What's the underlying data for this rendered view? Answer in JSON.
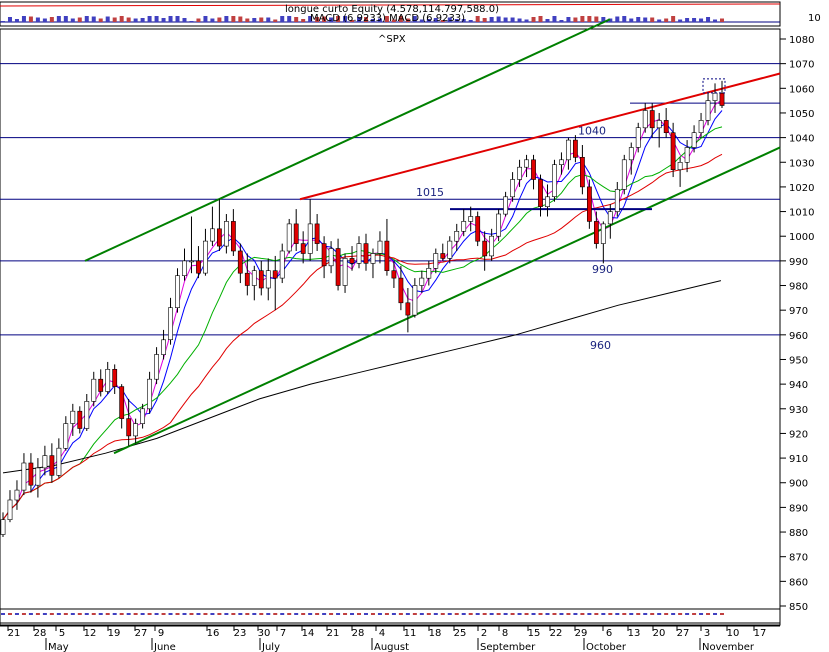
{
  "chart_data": {
    "type": "candlestick",
    "title": "^SPX",
    "top_panel_labels": {
      "line1": "longue curto Equity (4.578,114.797,588.0)",
      "line2": "MACD (6.9233) MACD (6.9233)"
    },
    "top_panel_axis_label": "10",
    "ylim": [
      843,
      1093
    ],
    "y_ticks": [
      850,
      860,
      870,
      880,
      890,
      900,
      910,
      920,
      930,
      940,
      950,
      960,
      970,
      980,
      990,
      1000,
      1010,
      1020,
      1030,
      1040,
      1050,
      1060,
      1070,
      1080
    ],
    "x_tick_labels": [
      "21",
      "28",
      "5",
      "12",
      "19",
      "27",
      "9",
      "16",
      "23",
      "30",
      "7",
      "14",
      "21",
      "28",
      "4",
      "11",
      "18",
      "25",
      "2",
      "8",
      "15",
      "22",
      "29",
      "6",
      "13",
      "20",
      "27",
      "3",
      "10",
      "17"
    ],
    "month_labels": [
      "May",
      "June",
      "July",
      "August",
      "September",
      "October",
      "November"
    ],
    "horizontal_levels": [
      {
        "value": 1070,
        "label": ""
      },
      {
        "value": 1054,
        "label": ""
      },
      {
        "value": 1040,
        "label": "1040"
      },
      {
        "value": 1015,
        "label": "1015"
      },
      {
        "value": 990,
        "label": "990"
      },
      {
        "value": 960,
        "label": "960"
      }
    ],
    "ohlc": [
      {
        "o": 879,
        "h": 888,
        "l": 878,
        "c": 885
      },
      {
        "o": 885,
        "h": 897,
        "l": 884,
        "c": 893
      },
      {
        "o": 893,
        "h": 901,
        "l": 889,
        "c": 897
      },
      {
        "o": 897,
        "h": 912,
        "l": 895,
        "c": 908
      },
      {
        "o": 908,
        "h": 912,
        "l": 896,
        "c": 899
      },
      {
        "o": 899,
        "h": 910,
        "l": 894,
        "c": 906
      },
      {
        "o": 906,
        "h": 915,
        "l": 903,
        "c": 911
      },
      {
        "o": 911,
        "h": 916,
        "l": 900,
        "c": 903
      },
      {
        "o": 903,
        "h": 918,
        "l": 902,
        "c": 914
      },
      {
        "o": 914,
        "h": 927,
        "l": 913,
        "c": 924
      },
      {
        "o": 924,
        "h": 932,
        "l": 919,
        "c": 929
      },
      {
        "o": 929,
        "h": 931,
        "l": 920,
        "c": 922
      },
      {
        "o": 922,
        "h": 936,
        "l": 921,
        "c": 933
      },
      {
        "o": 933,
        "h": 945,
        "l": 931,
        "c": 942
      },
      {
        "o": 942,
        "h": 946,
        "l": 935,
        "c": 937
      },
      {
        "o": 937,
        "h": 949,
        "l": 936,
        "c": 946
      },
      {
        "o": 946,
        "h": 948,
        "l": 936,
        "c": 939
      },
      {
        "o": 939,
        "h": 940,
        "l": 922,
        "c": 926
      },
      {
        "o": 926,
        "h": 934,
        "l": 915,
        "c": 919
      },
      {
        "o": 919,
        "h": 926,
        "l": 916,
        "c": 924
      },
      {
        "o": 924,
        "h": 932,
        "l": 922,
        "c": 930
      },
      {
        "o": 930,
        "h": 945,
        "l": 928,
        "c": 942
      },
      {
        "o": 942,
        "h": 955,
        "l": 940,
        "c": 952
      },
      {
        "o": 952,
        "h": 962,
        "l": 950,
        "c": 958
      },
      {
        "o": 958,
        "h": 975,
        "l": 956,
        "c": 971
      },
      {
        "o": 971,
        "h": 987,
        "l": 969,
        "c": 984
      },
      {
        "o": 984,
        "h": 995,
        "l": 982,
        "c": 990
      },
      {
        "o": 990,
        "h": 1008,
        "l": 985,
        "c": 990
      },
      {
        "o": 990,
        "h": 996,
        "l": 983,
        "c": 985
      },
      {
        "o": 985,
        "h": 1003,
        "l": 984,
        "c": 998
      },
      {
        "o": 998,
        "h": 1012,
        "l": 996,
        "c": 1003
      },
      {
        "o": 1003,
        "h": 1015,
        "l": 994,
        "c": 996
      },
      {
        "o": 996,
        "h": 1009,
        "l": 993,
        "c": 1006
      },
      {
        "o": 1006,
        "h": 1011,
        "l": 992,
        "c": 994
      },
      {
        "o": 994,
        "h": 997,
        "l": 981,
        "c": 985
      },
      {
        "o": 985,
        "h": 993,
        "l": 976,
        "c": 980
      },
      {
        "o": 980,
        "h": 988,
        "l": 974,
        "c": 986
      },
      {
        "o": 986,
        "h": 990,
        "l": 976,
        "c": 979
      },
      {
        "o": 979,
        "h": 991,
        "l": 974,
        "c": 986
      },
      {
        "o": 986,
        "h": 992,
        "l": 970,
        "c": 983
      },
      {
        "o": 983,
        "h": 997,
        "l": 981,
        "c": 994
      },
      {
        "o": 994,
        "h": 1007,
        "l": 993,
        "c": 1005
      },
      {
        "o": 1005,
        "h": 1011,
        "l": 994,
        "c": 997
      },
      {
        "o": 997,
        "h": 1002,
        "l": 989,
        "c": 993
      },
      {
        "o": 993,
        "h": 1015,
        "l": 990,
        "c": 1005
      },
      {
        "o": 1005,
        "h": 1009,
        "l": 994,
        "c": 997
      },
      {
        "o": 997,
        "h": 1000,
        "l": 983,
        "c": 988
      },
      {
        "o": 988,
        "h": 998,
        "l": 985,
        "c": 995
      },
      {
        "o": 995,
        "h": 999,
        "l": 978,
        "c": 980
      },
      {
        "o": 980,
        "h": 993,
        "l": 977,
        "c": 991
      },
      {
        "o": 991,
        "h": 996,
        "l": 986,
        "c": 989
      },
      {
        "o": 989,
        "h": 1000,
        "l": 987,
        "c": 997
      },
      {
        "o": 997,
        "h": 1001,
        "l": 986,
        "c": 989
      },
      {
        "o": 989,
        "h": 995,
        "l": 983,
        "c": 993
      },
      {
        "o": 993,
        "h": 1002,
        "l": 989,
        "c": 998
      },
      {
        "o": 998,
        "h": 1007,
        "l": 984,
        "c": 986
      },
      {
        "o": 986,
        "h": 990,
        "l": 979,
        "c": 983
      },
      {
        "o": 983,
        "h": 988,
        "l": 970,
        "c": 973
      },
      {
        "o": 973,
        "h": 979,
        "l": 961,
        "c": 968
      },
      {
        "o": 968,
        "h": 983,
        "l": 967,
        "c": 980
      },
      {
        "o": 980,
        "h": 986,
        "l": 977,
        "c": 983
      },
      {
        "o": 983,
        "h": 990,
        "l": 980,
        "c": 987
      },
      {
        "o": 987,
        "h": 995,
        "l": 985,
        "c": 993
      },
      {
        "o": 993,
        "h": 997,
        "l": 990,
        "c": 991
      },
      {
        "o": 991,
        "h": 1000,
        "l": 989,
        "c": 998
      },
      {
        "o": 998,
        "h": 1005,
        "l": 994,
        "c": 1002
      },
      {
        "o": 1002,
        "h": 1011,
        "l": 1000,
        "c": 1006
      },
      {
        "o": 1006,
        "h": 1012,
        "l": 1002,
        "c": 1008
      },
      {
        "o": 1008,
        "h": 1010,
        "l": 996,
        "c": 998
      },
      {
        "o": 998,
        "h": 1002,
        "l": 986,
        "c": 992
      },
      {
        "o": 992,
        "h": 1003,
        "l": 990,
        "c": 1000
      },
      {
        "o": 1000,
        "h": 1011,
        "l": 998,
        "c": 1009
      },
      {
        "o": 1009,
        "h": 1018,
        "l": 1008,
        "c": 1016
      },
      {
        "o": 1016,
        "h": 1026,
        "l": 1014,
        "c": 1023
      },
      {
        "o": 1023,
        "h": 1031,
        "l": 1020,
        "c": 1028
      },
      {
        "o": 1028,
        "h": 1033,
        "l": 1024,
        "c": 1031
      },
      {
        "o": 1031,
        "h": 1033,
        "l": 1019,
        "c": 1023
      },
      {
        "o": 1023,
        "h": 1025,
        "l": 1008,
        "c": 1012
      },
      {
        "o": 1012,
        "h": 1021,
        "l": 1008,
        "c": 1016
      },
      {
        "o": 1016,
        "h": 1031,
        "l": 1014,
        "c": 1029
      },
      {
        "o": 1029,
        "h": 1034,
        "l": 1025,
        "c": 1031
      },
      {
        "o": 1031,
        "h": 1040,
        "l": 1027,
        "c": 1039
      },
      {
        "o": 1039,
        "h": 1041,
        "l": 1030,
        "c": 1032
      },
      {
        "o": 1032,
        "h": 1037,
        "l": 1017,
        "c": 1020
      },
      {
        "o": 1020,
        "h": 1023,
        "l": 1003,
        "c": 1006
      },
      {
        "o": 1006,
        "h": 1010,
        "l": 995,
        "c": 997
      },
      {
        "o": 997,
        "h": 1006,
        "l": 989,
        "c": 1005
      },
      {
        "o": 1005,
        "h": 1013,
        "l": 999,
        "c": 1010
      },
      {
        "o": 1010,
        "h": 1022,
        "l": 1008,
        "c": 1019
      },
      {
        "o": 1019,
        "h": 1033,
        "l": 1017,
        "c": 1031
      },
      {
        "o": 1031,
        "h": 1038,
        "l": 1025,
        "c": 1036
      },
      {
        "o": 1036,
        "h": 1046,
        "l": 1034,
        "c": 1044
      },
      {
        "o": 1044,
        "h": 1054,
        "l": 1042,
        "c": 1051
      },
      {
        "o": 1051,
        "h": 1054,
        "l": 1040,
        "c": 1044
      },
      {
        "o": 1044,
        "h": 1050,
        "l": 1036,
        "c": 1047
      },
      {
        "o": 1047,
        "h": 1052,
        "l": 1040,
        "c": 1042
      },
      {
        "o": 1042,
        "h": 1046,
        "l": 1024,
        "c": 1027
      },
      {
        "o": 1027,
        "h": 1032,
        "l": 1020,
        "c": 1030
      },
      {
        "o": 1030,
        "h": 1039,
        "l": 1026,
        "c": 1036
      },
      {
        "o": 1036,
        "h": 1045,
        "l": 1034,
        "c": 1042
      },
      {
        "o": 1042,
        "h": 1050,
        "l": 1040,
        "c": 1047
      },
      {
        "o": 1047,
        "h": 1058,
        "l": 1045,
        "c": 1055
      },
      {
        "o": 1055,
        "h": 1062,
        "l": 1050,
        "c": 1058
      },
      {
        "o": 1058,
        "h": 1063,
        "l": 1052,
        "c": 1053
      }
    ],
    "moving_averages": [
      {
        "name": "",
        "color": "#e000e0",
        "period": 3
      },
      {
        "name": "",
        "color": "#0000ff",
        "period": 5
      },
      {
        "name": "",
        "color": "#00b000",
        "period": 12
      },
      {
        "name": "",
        "color": "#e00000",
        "period": 25
      },
      {
        "name": "",
        "color": "#000000",
        "period": 0
      }
    ],
    "trendlines": [
      {
        "name": "upper-channel",
        "color": "#008000",
        "points": [
          [
            "May 12",
            990
          ],
          [
            "Nov 1",
            1088
          ]
        ]
      },
      {
        "name": "lower-channel",
        "color": "#008000",
        "points": [
          [
            "May 19",
            912
          ],
          [
            "Nov 20",
            1036
          ]
        ]
      },
      {
        "name": "resistance",
        "color": "#e00000",
        "points": [
          [
            "Jul 14",
            1015
          ],
          [
            "Nov 20",
            1066
          ]
        ]
      },
      {
        "name": "support-segment",
        "color": "#000080",
        "points": [
          [
            "Aug 25",
            1011
          ],
          [
            "Oct 20",
            1011
          ]
        ]
      }
    ],
    "long_ma_points": [
      [
        0,
        904
      ],
      [
        40,
        907
      ],
      [
        80,
        912
      ],
      [
        120,
        918
      ],
      [
        160,
        926
      ],
      [
        200,
        934
      ],
      [
        240,
        940
      ],
      [
        280,
        945
      ],
      [
        320,
        950
      ],
      [
        360,
        955
      ],
      [
        400,
        960
      ],
      [
        440,
        966
      ],
      [
        480,
        972
      ],
      [
        520,
        977
      ],
      [
        560,
        982
      ]
    ],
    "colors": {
      "up": "#ffffff",
      "down": "#e00000",
      "grid": "#000000",
      "levels": "#000080",
      "candle_outline": "#000000"
    }
  }
}
